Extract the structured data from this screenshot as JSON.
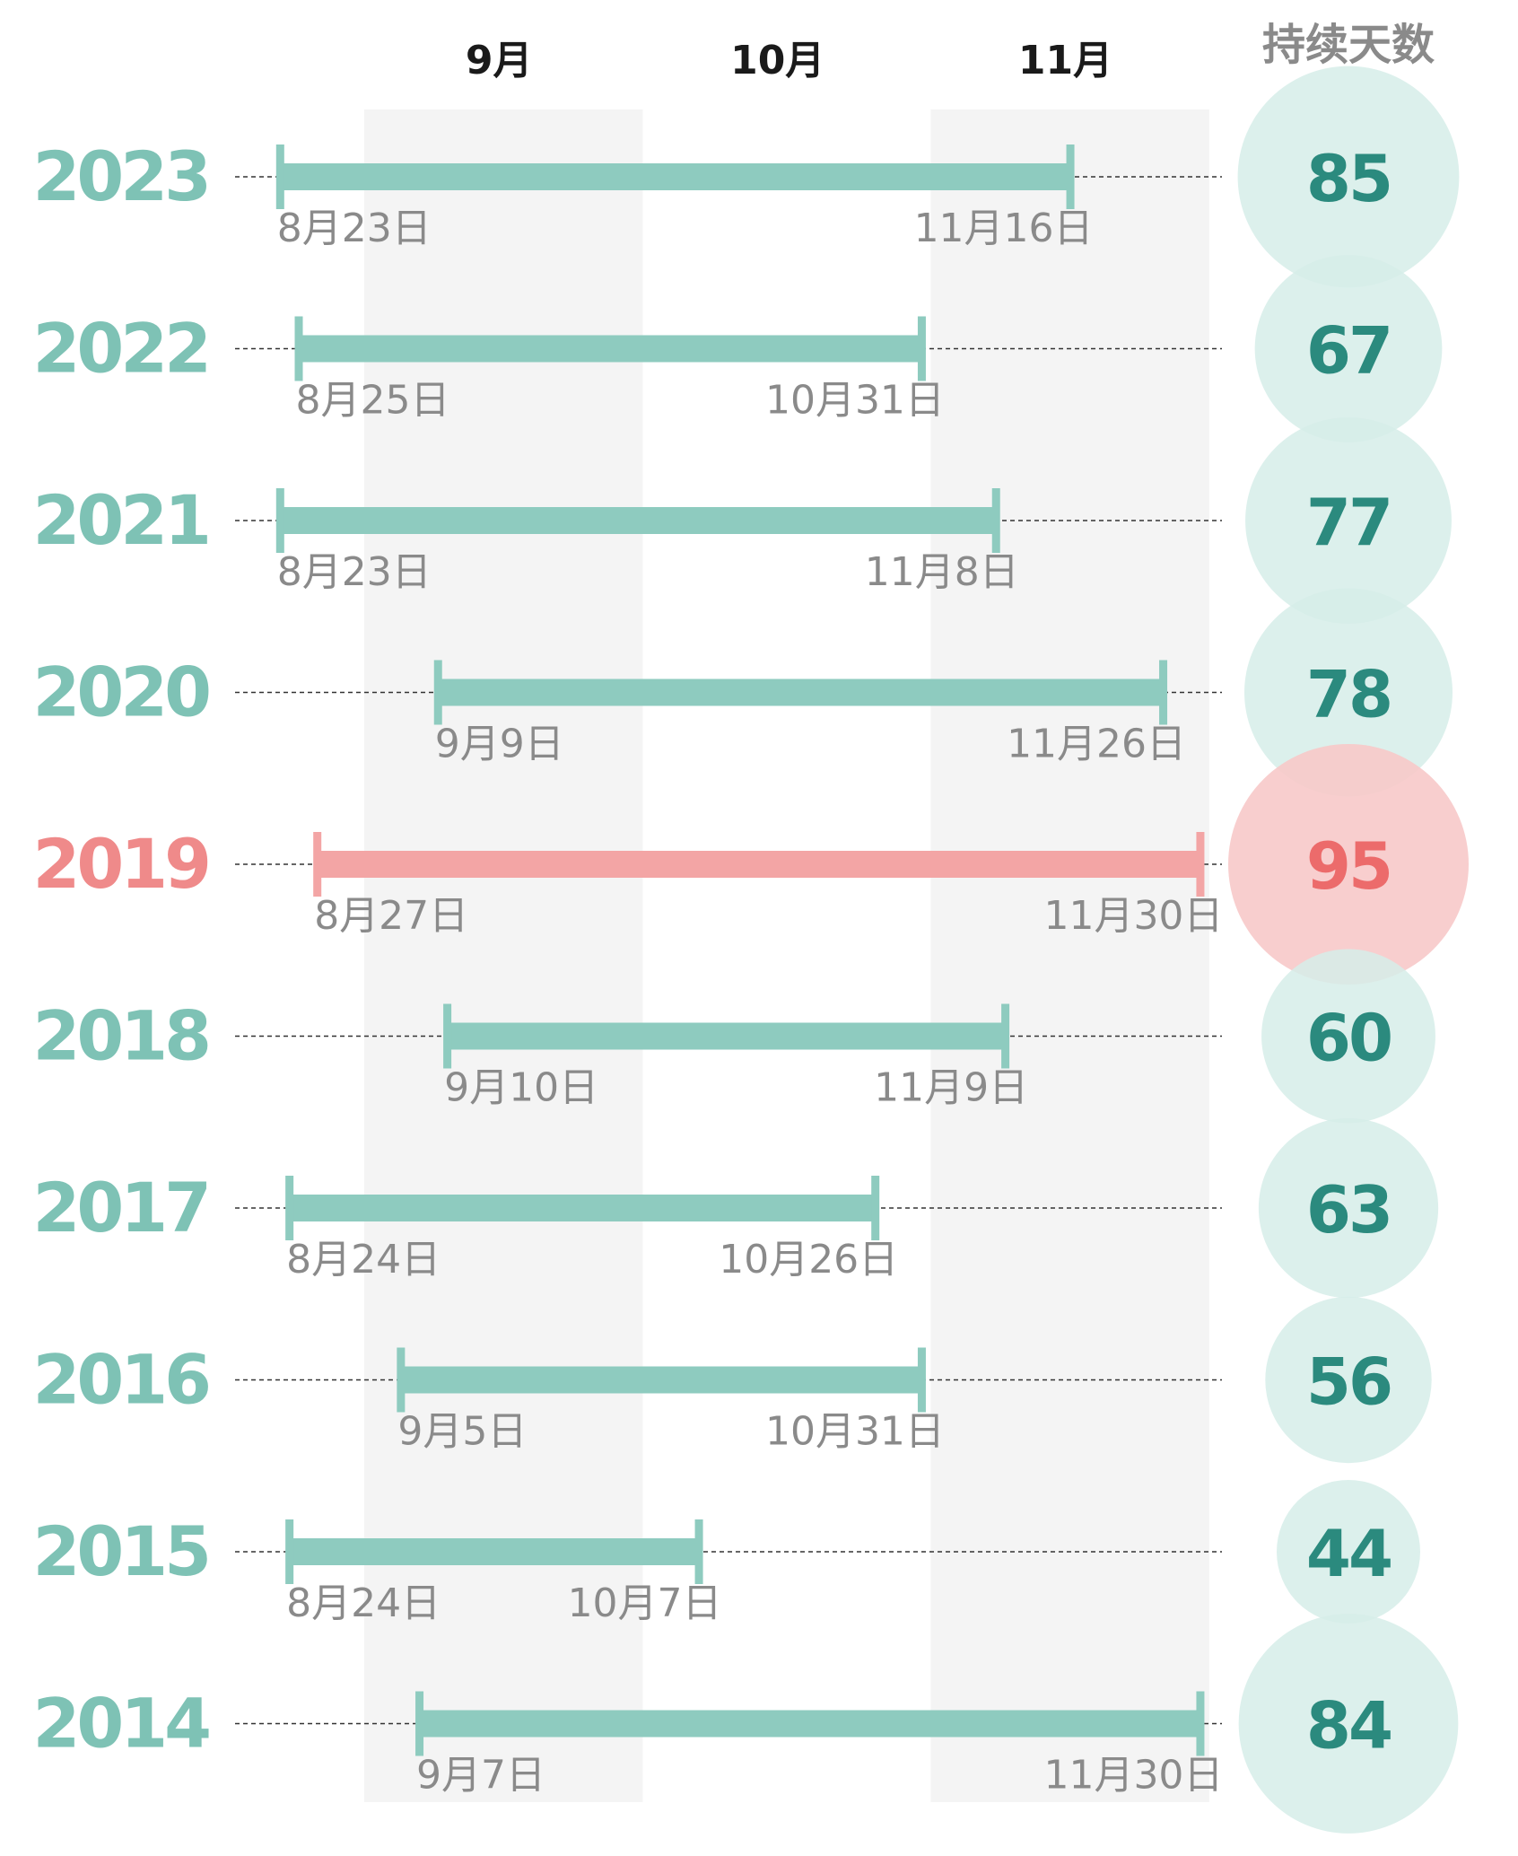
{
  "chart_data": {
    "type": "range-bar",
    "months": [
      "9月",
      "10月",
      "11月"
    ],
    "days_header": "持续天数",
    "colors": {
      "normal_bar": "#8ecbbf",
      "normal_year": "#7ec2b5",
      "normal_circle": "#d6ede9",
      "normal_value": "#2b8a7e",
      "highlight_bar": "#f3a5a5",
      "highlight_year": "#ef8a8a",
      "highlight_circle": "#f7c9c9",
      "highlight_value": "#ec6b6b",
      "band": "#f4f4f4",
      "date_text": "#8a8a8a"
    },
    "rows": [
      {
        "year": "2023",
        "start": "2023-08-23",
        "end": "2023-11-16",
        "start_label": "8月23日",
        "end_label": "11月16日",
        "days": "85",
        "highlight": false
      },
      {
        "year": "2022",
        "start": "2022-08-25",
        "end": "2022-10-31",
        "start_label": "8月25日",
        "end_label": "10月31日",
        "days": "67",
        "highlight": false
      },
      {
        "year": "2021",
        "start": "2021-08-23",
        "end": "2021-11-08",
        "start_label": "8月23日",
        "end_label": "11月8日",
        "days": "77",
        "highlight": false
      },
      {
        "year": "2020",
        "start": "2020-09-09",
        "end": "2020-11-26",
        "start_label": "9月9日",
        "end_label": "11月26日",
        "days": "78",
        "highlight": false
      },
      {
        "year": "2019",
        "start": "2019-08-27",
        "end": "2019-11-30",
        "start_label": "8月27日",
        "end_label": "11月30日",
        "days": "95",
        "highlight": true
      },
      {
        "year": "2018",
        "start": "2018-09-10",
        "end": "2018-11-09",
        "start_label": "9月10日",
        "end_label": "11月9日",
        "days": "60",
        "highlight": false
      },
      {
        "year": "2017",
        "start": "2017-08-24",
        "end": "2017-10-26",
        "start_label": "8月24日",
        "end_label": "10月26日",
        "days": "63",
        "highlight": false
      },
      {
        "year": "2016",
        "start": "2016-09-05",
        "end": "2016-10-31",
        "start_label": "9月5日",
        "end_label": "10月31日",
        "days": "56",
        "highlight": false
      },
      {
        "year": "2015",
        "start": "2015-08-24",
        "end": "2015-10-07",
        "start_label": "8月24日",
        "end_label": "10月7日",
        "days": "44",
        "highlight": false
      },
      {
        "year": "2014",
        "start": "2014-09-07",
        "end": "2014-11-30",
        "start_label": "9月7日",
        "end_label": "11月30日",
        "days": "84",
        "highlight": false
      }
    ]
  }
}
